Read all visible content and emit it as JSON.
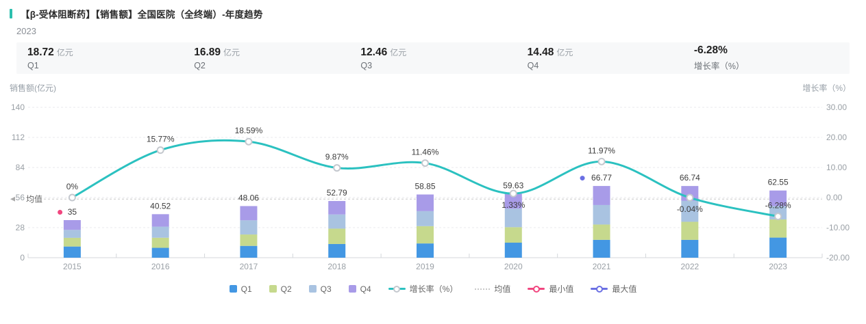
{
  "header": {
    "title": "【β-受体阻断药】【销售额】全国医院（全终端）-年度趋势",
    "year": "2023"
  },
  "stats": [
    {
      "value": "18.72",
      "unit": "亿元",
      "label": "Q1"
    },
    {
      "value": "16.89",
      "unit": "亿元",
      "label": "Q2"
    },
    {
      "value": "12.46",
      "unit": "亿元",
      "label": "Q3"
    },
    {
      "value": "14.48",
      "unit": "亿元",
      "label": "Q4"
    },
    {
      "value": "-6.28%",
      "unit": "",
      "label": "增长率（%）"
    }
  ],
  "colors": {
    "accent": "#2CBFAE",
    "q1": "#4397E3",
    "q2": "#C6D98D",
    "q3": "#A9C3E1",
    "q4": "#A89BE8",
    "line": "#2BC1C0",
    "point_stroke": "#C4C8CE",
    "min": "#F1467F",
    "max": "#6A6FE3",
    "grid": "#E8EAED",
    "axis": "#D4D7DB",
    "mean": "#C8C8C8",
    "tick_text": "#9AA0A6",
    "label_text": "#3C3C3C"
  },
  "chart_data": {
    "type": "stacked-bar+line",
    "categories": [
      "2015",
      "2016",
      "2017",
      "2018",
      "2019",
      "2020",
      "2021",
      "2022",
      "2023"
    ],
    "series": [
      {
        "name": "Q1",
        "color_key": "q1",
        "values": [
          10.4,
          9.2,
          11.0,
          12.76,
          13.27,
          13.99,
          16.62,
          16.61,
          18.72
        ]
      },
      {
        "name": "Q2",
        "color_key": "q2",
        "values": [
          8.1,
          9.4,
          10.6,
          14.31,
          16.11,
          14.4,
          14.27,
          16.81,
          16.89
        ]
      },
      {
        "name": "Q3",
        "color_key": "q3",
        "values": [
          7.4,
          10.3,
          13.2,
          13.17,
          13.98,
          17.24,
          18.15,
          19.46,
          12.46
        ]
      },
      {
        "name": "Q4",
        "color_key": "q4",
        "values": [
          9.1,
          11.62,
          13.26,
          12.55,
          15.49,
          14.0,
          17.73,
          13.86,
          14.48
        ]
      }
    ],
    "totals": [
      35,
      40.52,
      48.06,
      52.79,
      58.85,
      59.63,
      66.77,
      66.74,
      62.55
    ],
    "total_labels": [
      "35",
      "40.52",
      "48.06",
      "52.79",
      "58.85",
      "59.63",
      "66.77",
      "66.74",
      "62.55"
    ],
    "growth": {
      "name": "增长率（%）",
      "values": [
        0,
        15.77,
        18.59,
        9.87,
        11.46,
        1.33,
        11.97,
        -0.04,
        -6.28
      ],
      "labels": [
        "0%",
        "15.77%",
        "18.59%",
        "9.87%",
        "11.46%",
        "1.33%",
        "11.97%",
        "-0.04%",
        "-6.28%"
      ],
      "below_indices": [
        5,
        7
      ]
    },
    "left_axis": {
      "title": "销售额(亿元)",
      "ticks": [
        "140",
        "112",
        "84",
        "56",
        "28",
        "0"
      ],
      "min": 0,
      "max": 140
    },
    "right_axis": {
      "title": "增长率（%）",
      "ticks": [
        "30.00",
        "20.00",
        "10.00",
        "0.00",
        "-10.00",
        "-20.00"
      ],
      "min": -20,
      "max": 30
    },
    "mean_line": {
      "label": "均值"
    },
    "min_marker": {
      "index": 0
    },
    "max_marker": {
      "index": 6
    },
    "grid": "dashed horizontal",
    "legend": [
      {
        "label": "Q1",
        "type": "square",
        "color_key": "q1"
      },
      {
        "label": "Q2",
        "type": "square",
        "color_key": "q2"
      },
      {
        "label": "Q3",
        "type": "square",
        "color_key": "q3"
      },
      {
        "label": "Q4",
        "type": "square",
        "color_key": "q4"
      },
      {
        "label": "增长率（%）",
        "type": "line",
        "color_key": "line",
        "marker_stroke": "#C4C8CE"
      },
      {
        "label": "均值",
        "type": "dotted",
        "color_key": "mean"
      },
      {
        "label": "最小值",
        "type": "line",
        "color_key": "min",
        "marker_stroke": "#F1467F"
      },
      {
        "label": "最大值",
        "type": "line",
        "color_key": "max",
        "marker_stroke": "#6A6FE3"
      }
    ]
  }
}
